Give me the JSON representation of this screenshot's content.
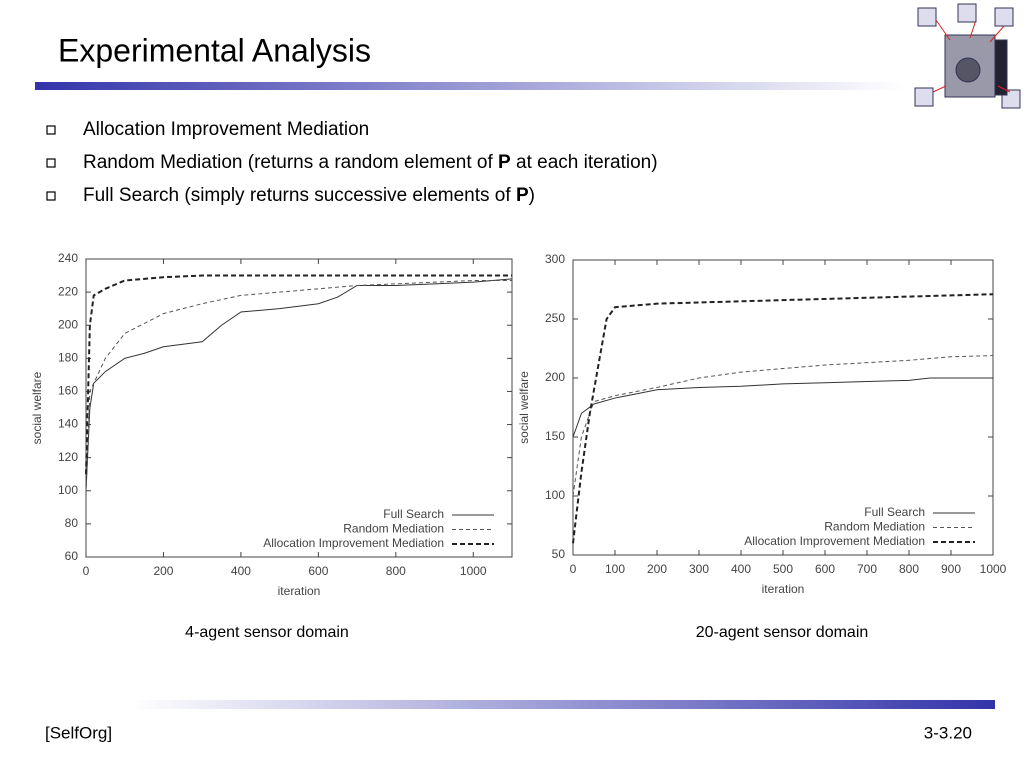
{
  "slide": {
    "title": "Experimental Analysis",
    "bullets": [
      [
        "Allocation Improvement Mediation"
      ],
      [
        "Random Mediation (returns a random element of ",
        "P",
        " at each iteration)"
      ],
      [
        "Full Search (simply returns successive elements of ",
        "P",
        ")"
      ]
    ],
    "footer_left": "[SelfOrg]",
    "footer_right": "3-3.20"
  },
  "chart_data": [
    {
      "type": "line",
      "caption": "4-agent sensor domain",
      "x_label": "iteration",
      "y_label": "social welfare",
      "xlim": [
        0,
        1100
      ],
      "xticks": [
        0,
        200,
        400,
        600,
        800,
        1000
      ],
      "ylim": [
        60,
        240
      ],
      "yticks": [
        60,
        80,
        100,
        120,
        140,
        160,
        180,
        200,
        220,
        240
      ],
      "legend": "lower right",
      "series": [
        {
          "name": "Full Search",
          "color": "#333333",
          "line_style": "solid",
          "line_width": 1,
          "x": [
            0,
            10,
            20,
            50,
            100,
            150,
            200,
            300,
            350,
            400,
            500,
            600,
            650,
            700,
            800,
            900,
            1000,
            1100
          ],
          "values": [
            100,
            150,
            165,
            172,
            180,
            183,
            187,
            190,
            200,
            208,
            210,
            213,
            217,
            224,
            224,
            225,
            226,
            228
          ]
        },
        {
          "name": "Random Mediation",
          "color": "#555555",
          "line_style": "dashed",
          "line_width": 1,
          "x": [
            0,
            10,
            50,
            100,
            200,
            300,
            400,
            500,
            600,
            700,
            800,
            900,
            1000,
            1100
          ],
          "values": [
            100,
            160,
            180,
            195,
            207,
            213,
            218,
            220,
            222,
            224,
            225,
            226,
            227,
            227
          ]
        },
        {
          "name": "Allocation Improvement Mediation",
          "color": "#222222",
          "line_style": "dashed",
          "line_width": 2,
          "x": [
            0,
            10,
            20,
            50,
            100,
            200,
            300,
            400,
            500,
            600,
            700,
            800,
            900,
            1000,
            1100
          ],
          "values": [
            110,
            200,
            218,
            222,
            227,
            229,
            230,
            230,
            230,
            230,
            230,
            230,
            230,
            230,
            230
          ]
        }
      ]
    },
    {
      "type": "line",
      "caption": "20-agent sensor domain",
      "x_label": "iteration",
      "y_label": "social welfare",
      "xlim": [
        0,
        1000
      ],
      "xticks": [
        0,
        100,
        200,
        300,
        400,
        500,
        600,
        700,
        800,
        900,
        1000
      ],
      "ylim": [
        50,
        300
      ],
      "yticks": [
        50,
        100,
        150,
        200,
        250,
        300
      ],
      "legend": "lower right",
      "series": [
        {
          "name": "Full Search",
          "color": "#333333",
          "line_style": "solid",
          "line_width": 1,
          "x": [
            0,
            20,
            50,
            100,
            200,
            300,
            400,
            500,
            600,
            700,
            800,
            850,
            1000
          ],
          "values": [
            150,
            170,
            178,
            183,
            190,
            192,
            193,
            195,
            196,
            197,
            198,
            200,
            200
          ]
        },
        {
          "name": "Random Mediation",
          "color": "#555555",
          "line_style": "dashed",
          "line_width": 1,
          "x": [
            0,
            20,
            50,
            100,
            200,
            300,
            400,
            500,
            600,
            700,
            800,
            900,
            1000
          ],
          "values": [
            100,
            150,
            180,
            185,
            192,
            200,
            205,
            208,
            211,
            213,
            215,
            218,
            219
          ]
        },
        {
          "name": "Allocation Improvement Mediation",
          "color": "#222222",
          "line_style": "dashed",
          "line_width": 2,
          "x": [
            0,
            20,
            40,
            60,
            80,
            100,
            200,
            300,
            400,
            500,
            600,
            700,
            800,
            900,
            1000
          ],
          "values": [
            60,
            120,
            170,
            210,
            250,
            260,
            263,
            264,
            265,
            266,
            267,
            268,
            269,
            270,
            271
          ]
        }
      ]
    }
  ]
}
